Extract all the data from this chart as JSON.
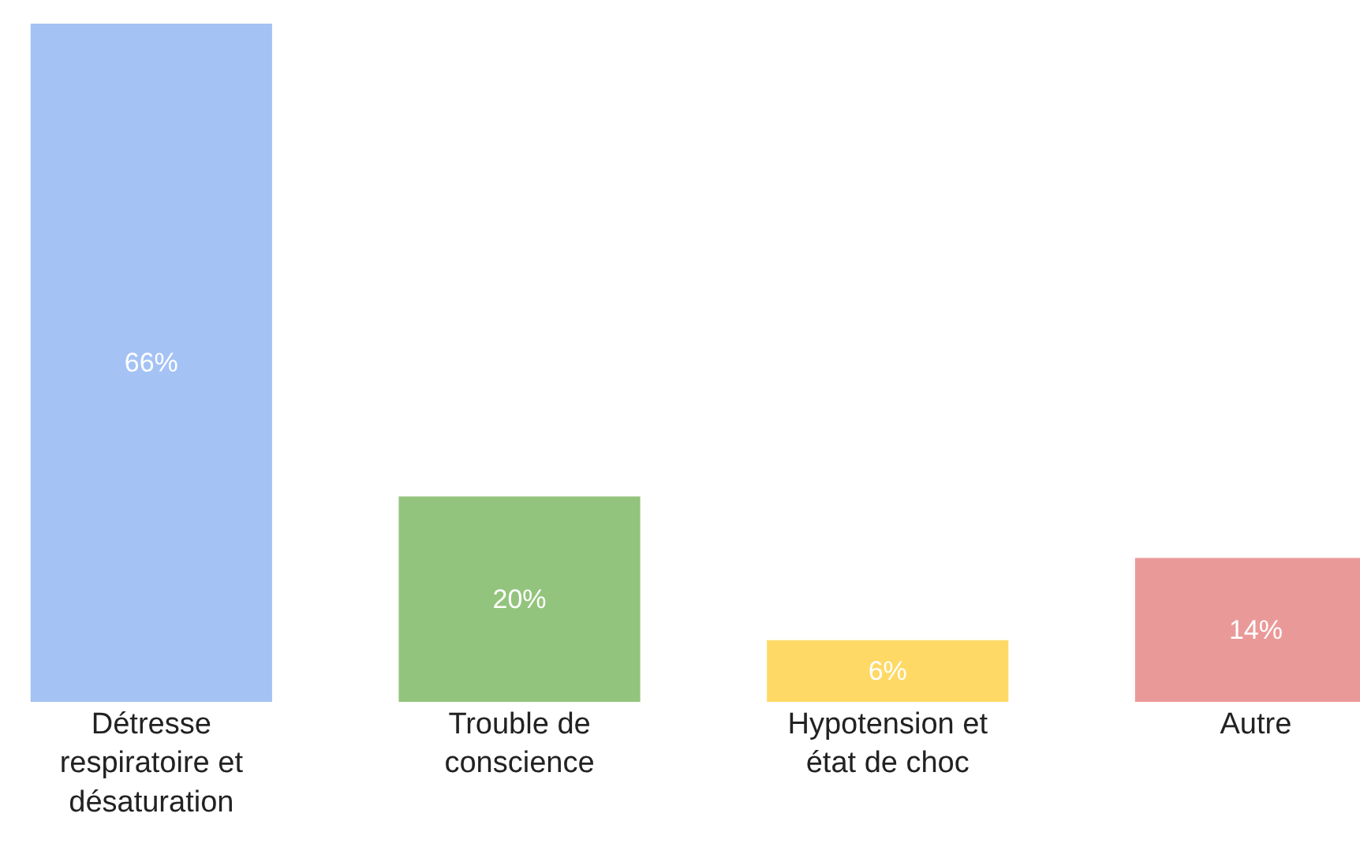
{
  "chart_data": {
    "type": "bar",
    "categories": [
      "Détresse respiratoire et désaturation",
      "Trouble de conscience",
      "Hypotension et état de choc",
      "Autre"
    ],
    "values": [
      66,
      20,
      6,
      14
    ],
    "colors": [
      "#a4c2f4",
      "#93c47d",
      "#ffd966",
      "#ea9999"
    ],
    "value_labels": [
      "66%",
      "20%",
      "6%",
      "14%"
    ]
  }
}
